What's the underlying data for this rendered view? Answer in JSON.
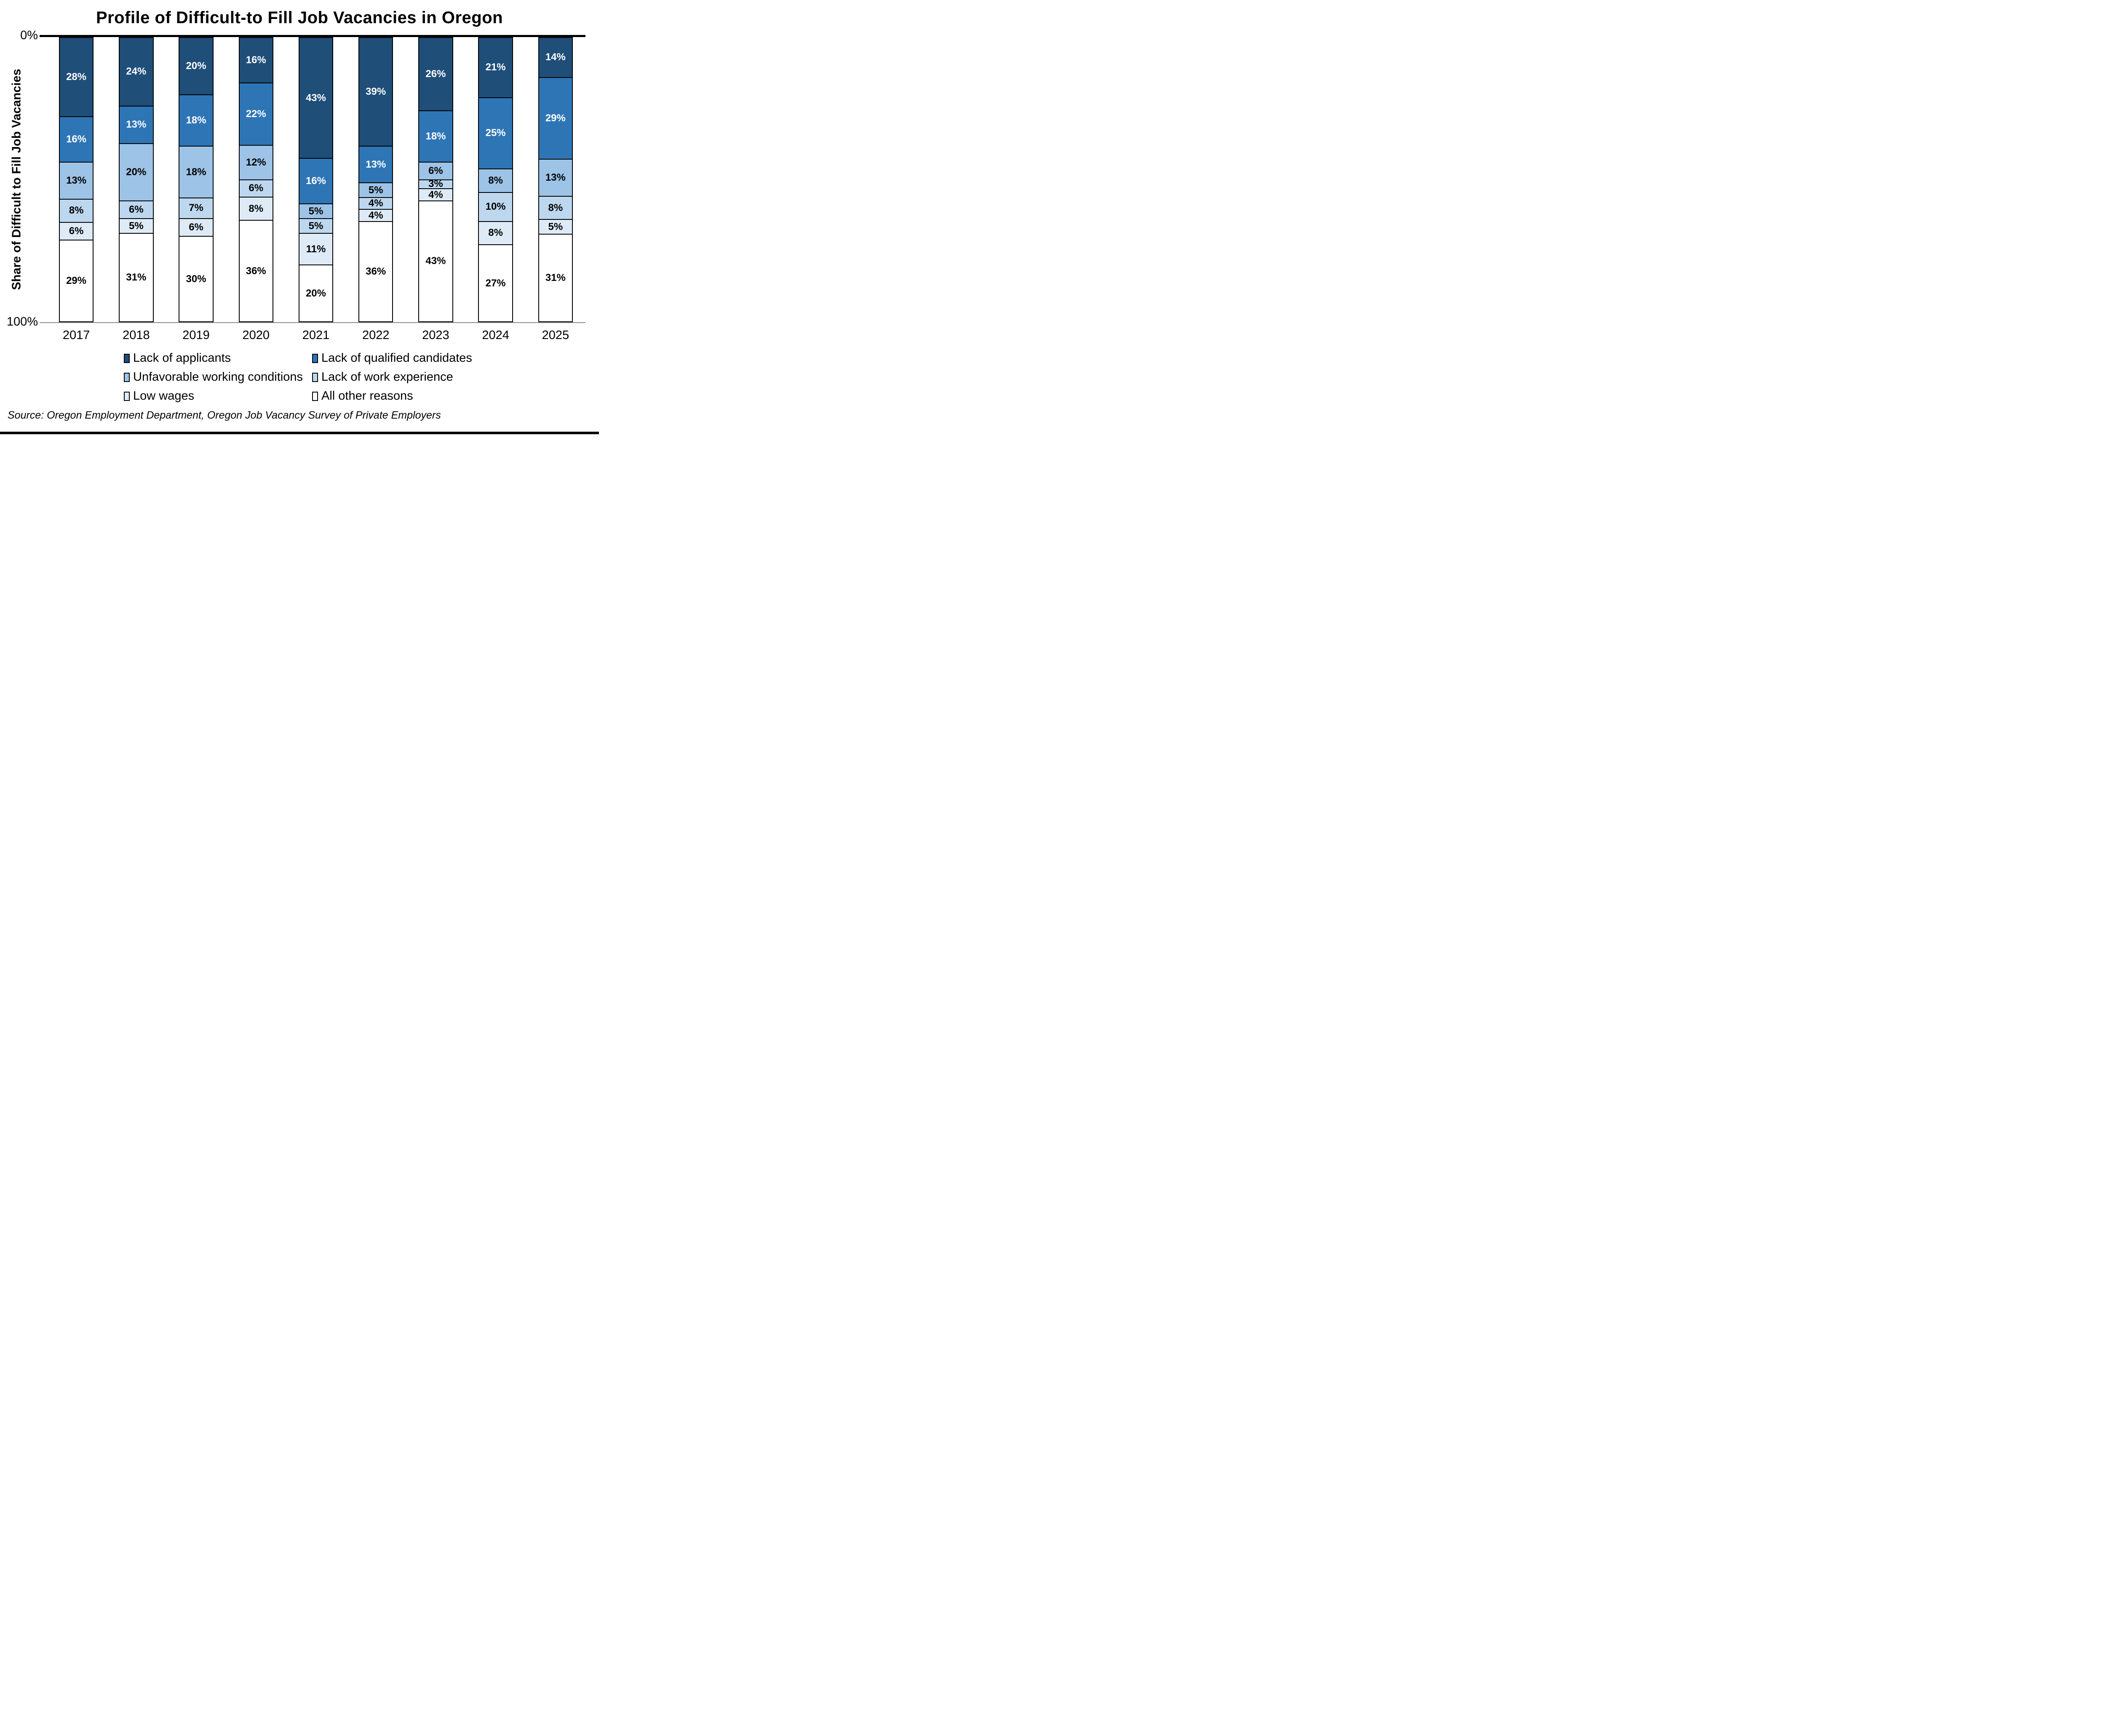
{
  "title": "Profile of Difficult-to Fill Job Vacancies in Oregon",
  "y_axis": {
    "top_label": "0%",
    "bottom_label": "100%",
    "title": "Share of Difficult to Fill Job Vacancies"
  },
  "source": "Source: Oregon Employment Department, Oregon Job Vacancy Survey of Private Employers",
  "colors": {
    "lack_of_applicants": "#1F4E79",
    "lack_of_qualified_candidates": "#2E75B6",
    "unfavorable_working_conditions": "#9DC3E6",
    "lack_of_work_experience": "#BDD7EE",
    "low_wages": "#DEEBF7",
    "all_other_reasons": "#FFFFFF",
    "segment_border": "#000000",
    "baseline": "#8C8C8C"
  },
  "chart_data": {
    "type": "bar",
    "stacked": true,
    "inverted_axis": true,
    "value_suffix": "%",
    "ylim": [
      0,
      100
    ],
    "grid": false,
    "legend_position": "bottom",
    "categories": [
      "2017",
      "2018",
      "2019",
      "2020",
      "2021",
      "2022",
      "2023",
      "2024",
      "2025"
    ],
    "series": [
      {
        "name": "Lack of applicants",
        "color": "#1F4E79",
        "label_color": "#FFFFFF",
        "values": [
          28,
          24,
          20,
          16,
          43,
          39,
          26,
          21,
          14
        ]
      },
      {
        "name": "Lack of qualified candidates",
        "color": "#2E75B6",
        "label_color": "#FFFFFF",
        "values": [
          16,
          13,
          18,
          22,
          16,
          13,
          18,
          25,
          29
        ]
      },
      {
        "name": "Unfavorable working conditions",
        "color": "#9DC3E6",
        "label_color": "#000000",
        "values": [
          13,
          20,
          18,
          12,
          5,
          5,
          6,
          8,
          13
        ]
      },
      {
        "name": "Lack of work experience",
        "color": "#BDD7EE",
        "label_color": "#000000",
        "values": [
          8,
          6,
          7,
          6,
          5,
          4,
          3,
          10,
          8
        ]
      },
      {
        "name": "Low wages",
        "color": "#DEEBF7",
        "label_color": "#000000",
        "values": [
          6,
          5,
          6,
          8,
          11,
          4,
          4,
          8,
          5
        ]
      },
      {
        "name": "All other reasons",
        "color": "#FFFFFF",
        "label_color": "#000000",
        "values": [
          29,
          31,
          30,
          36,
          20,
          36,
          43,
          27,
          31
        ]
      }
    ],
    "xlabel": "",
    "ylabel": "Share of Difficult to Fill Job Vacancies"
  }
}
